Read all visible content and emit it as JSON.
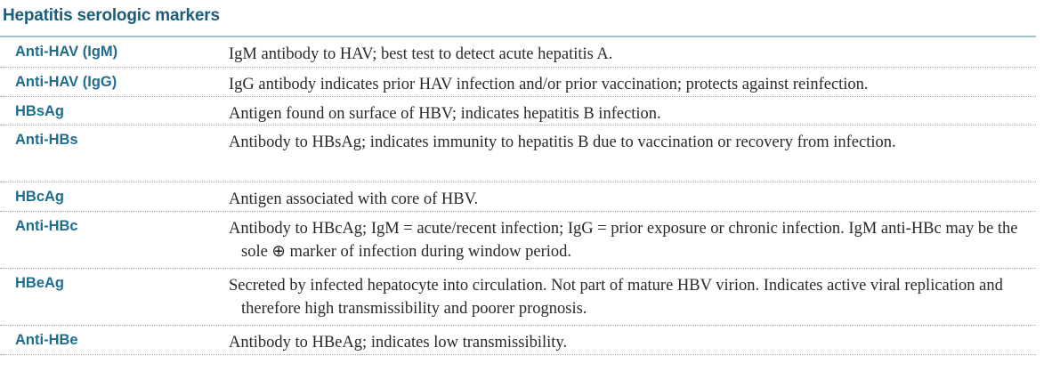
{
  "title": "Hepatitis serologic markers",
  "rows": [
    {
      "term": "Anti-HAV (IgM)",
      "definition": "IgM antibody to HAV; best test to detect acute hepatitis A."
    },
    {
      "term": "Anti-HAV (IgG)",
      "definition": "IgG antibody indicates prior HAV infection and/or prior vaccination; protects against reinfection."
    },
    {
      "term": "HBsAg",
      "definition": "Antigen found on surface of HBV; indicates hepatitis B infection."
    },
    {
      "term": "Anti-HBs",
      "definition": "Antibody to HBsAg; indicates immunity to hepatitis B due to vaccination or recovery from infection."
    },
    {
      "term": "HBcAg",
      "definition": "Antigen associated with core of HBV."
    },
    {
      "term": "Anti-HBc",
      "definition": "Antibody to HBcAg; IgM = acute/recent infection; IgG = prior exposure or chronic infection. IgM anti-HBc may be the sole ⊕ marker of infection during window period."
    },
    {
      "term": "HBeAg",
      "definition": "Secreted by infected hepatocyte into circulation. Not part of mature HBV virion. Indicates active viral replication and therefore high transmissibility and poorer prognosis."
    },
    {
      "term": "Anti-HBe",
      "definition": "Antibody to HBeAg; indicates low transmissibility."
    }
  ]
}
